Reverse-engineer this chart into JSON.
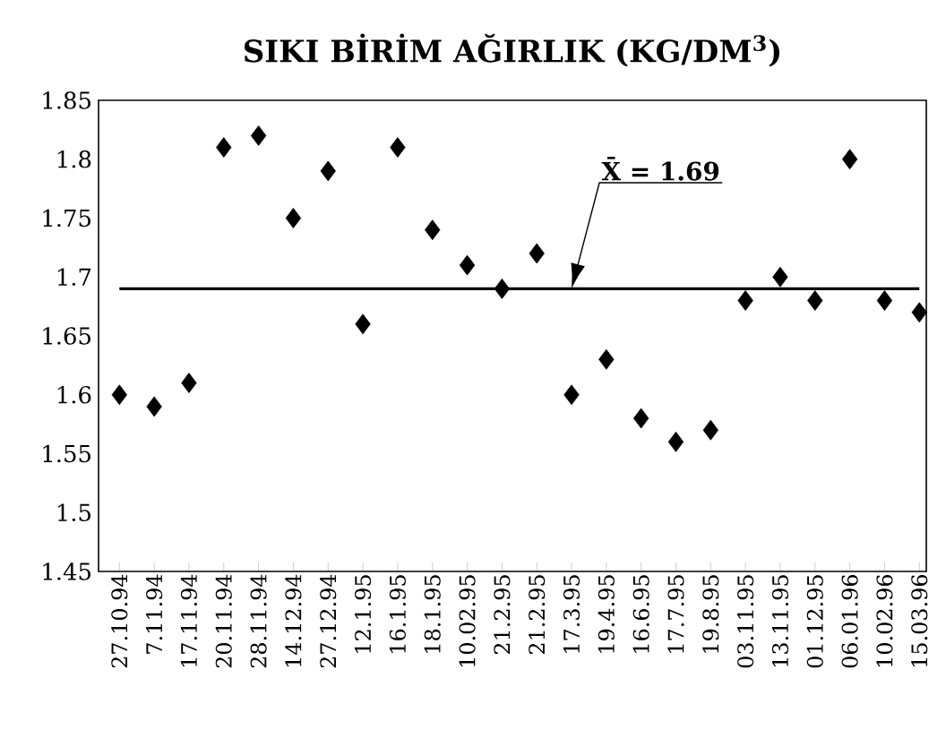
{
  "chart_data": {
    "type": "scatter",
    "title": "SIKI BİRİM AĞIRLIK (KG/DM$^{3}$)",
    "categories": [
      "27.10.94",
      "7.11.94",
      "17.11.94",
      "20.11.94",
      "28.11.94",
      "14.12.94",
      "27.12.94",
      "12.1.95",
      "16.1.95",
      "18.1.95",
      "10.02.95",
      "21.2.95",
      "21.2.95",
      "17.3.95",
      "19.4.95",
      "16.6.95",
      "17.7.95",
      "19.8.95",
      "03.11.95",
      "13.11.95",
      "01.12.95",
      "06.01.96",
      "10.02.96",
      "15.03.96"
    ],
    "values": [
      1.6,
      1.59,
      1.61,
      1.81,
      1.82,
      1.75,
      1.79,
      1.66,
      1.81,
      1.74,
      1.71,
      1.69,
      1.72,
      1.6,
      1.63,
      1.58,
      1.56,
      1.57,
      1.68,
      1.7,
      1.68,
      1.8,
      1.68,
      1.67
    ],
    "color": "#000000",
    "marker": "diamond",
    "ylim": [
      1.45,
      1.85
    ],
    "yticks": [
      1.45,
      1.5,
      1.55,
      1.6,
      1.65,
      1.7,
      1.75,
      1.8,
      1.85
    ],
    "ref_lines": [
      {
        "axis": "y",
        "value": 1.69,
        "label": "X̄ = 1.69",
        "color": "#000000"
      }
    ]
  }
}
